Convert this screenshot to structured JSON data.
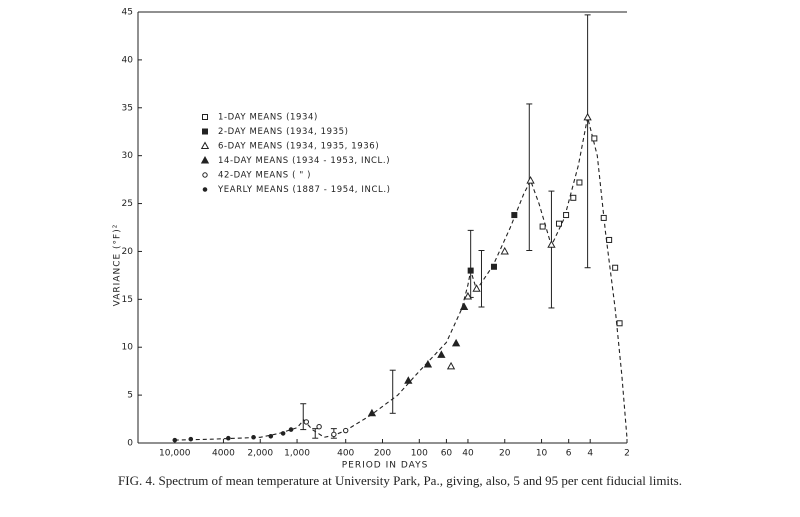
{
  "chart_data": {
    "type": "scatter",
    "caption": "FIG. 4. Spectrum of mean temperature at University Park, Pa., giving, also, 5 and 95 per cent fiducial limits.",
    "xlabel": "PERIOD IN DAYS",
    "ylabel": "VARIANCE (°F)²",
    "xlog": true,
    "xlim": [
      20000,
      2
    ],
    "ylim": [
      0,
      45
    ],
    "xticks": [
      {
        "value": 10000,
        "label": "10,000"
      },
      4000,
      {
        "value": 2000,
        "label": "2,000"
      },
      {
        "value": 1000,
        "label": "1,000"
      },
      400,
      200,
      100,
      60,
      40,
      20,
      10,
      6,
      4,
      2
    ],
    "yticks": [
      0,
      5,
      10,
      15,
      20,
      25,
      30,
      35,
      40,
      45
    ],
    "color": "#222222",
    "series": [
      {
        "name": "1-DAY MEANS (1934)",
        "marker": "square-open",
        "x": [
          9.8,
          7.2,
          6.3,
          5.5,
          4.9,
          3.7,
          3.1,
          2.8,
          2.5,
          2.3
        ],
        "values": [
          22.6,
          22.9,
          23.8,
          25.6,
          27.2,
          31.8,
          23.5,
          21.2,
          18.3,
          12.5
        ]
      },
      {
        "name": "2-DAY MEANS (1934, 1935)",
        "marker": "square-filled",
        "x": [
          16.7,
          24.5,
          38
        ],
        "values": [
          23.8,
          18.4,
          18.0
        ]
      },
      {
        "name": "6-DAY MEANS (1934, 1935, 1936)",
        "marker": "triangle-open",
        "x": [
          12.3,
          8.3,
          4.2,
          20,
          40,
          34,
          55
        ],
        "values": [
          27.4,
          20.7,
          34.0,
          20.0,
          15.3,
          16.1,
          8.0
        ]
      },
      {
        "name": "14-DAY MEANS (1934 - 1953, INCL.)",
        "marker": "triangle-filled",
        "x": [
          43,
          50,
          66,
          85,
          123,
          244
        ],
        "values": [
          14.2,
          10.4,
          9.2,
          8.2,
          6.5,
          3.1
        ]
      },
      {
        "name": "42-DAY MEANS (        \"        )",
        "marker": "circle-open",
        "x": [
          400,
          500,
          660,
          840
        ],
        "values": [
          1.3,
          0.9,
          1.7,
          2.2
        ]
      },
      {
        "name": "YEARLY MEANS (1887 - 1954, INCL.)",
        "marker": "dot",
        "x": [
          10000,
          7400,
          3650,
          2270,
          1640,
          1300,
          1120
        ],
        "values": [
          0.3,
          0.4,
          0.5,
          0.6,
          0.7,
          1.0,
          1.4
        ]
      }
    ],
    "curve": {
      "dashed": true,
      "x": [
        10000,
        5000,
        2000,
        1400,
        1000,
        880,
        750,
        600,
        500,
        400,
        250,
        150,
        100,
        60,
        45,
        40,
        38,
        34,
        25,
        18,
        14,
        12.3,
        10.5,
        8.3,
        6.5,
        5,
        4.2,
        3.5,
        3,
        2.5,
        2.2,
        2
      ],
      "values": [
        0.3,
        0.4,
        0.6,
        1.0,
        1.6,
        2.4,
        1.4,
        0.6,
        0.8,
        1.3,
        2.9,
        5.0,
        7.5,
        10.5,
        14.0,
        16.5,
        18.0,
        16.0,
        18.5,
        22.5,
        26.0,
        27.4,
        25.0,
        20.6,
        23.5,
        29.0,
        34.0,
        30.0,
        22.0,
        14.0,
        7.0,
        0.5
      ]
    },
    "error_bars": {
      "x": [
        890,
        710,
        500,
        165,
        38,
        31,
        12.6,
        8.3,
        4.2
      ],
      "low": [
        1.4,
        0.5,
        0.5,
        3.1,
        15.2,
        14.2,
        20.1,
        14.1,
        18.3
      ],
      "high": [
        4.1,
        1.5,
        1.5,
        7.6,
        22.2,
        20.1,
        35.4,
        26.3,
        44.7
      ]
    }
  }
}
